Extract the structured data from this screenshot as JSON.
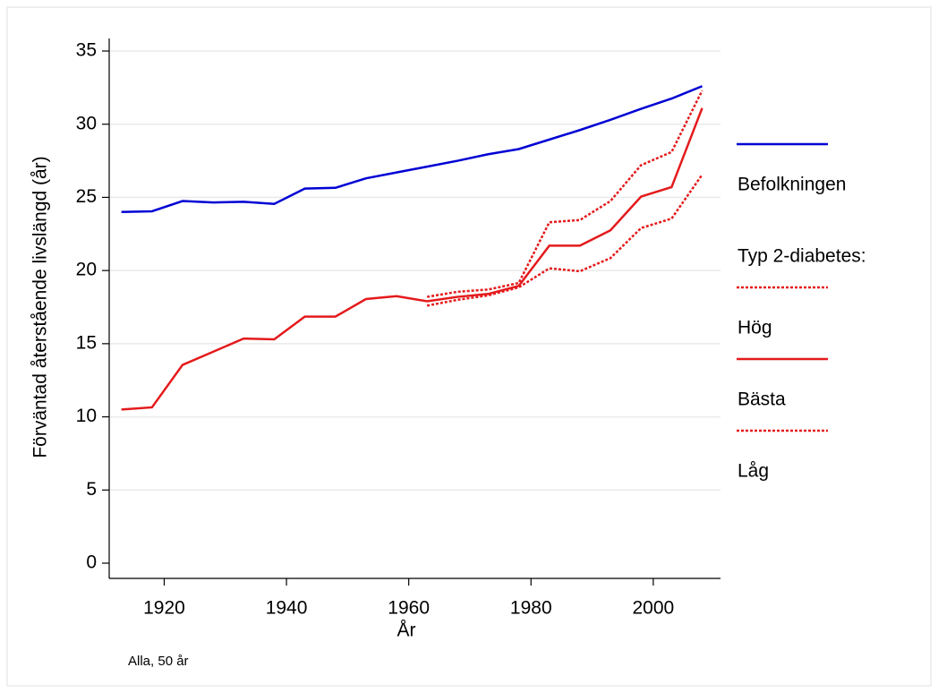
{
  "chart_data": {
    "type": "line",
    "xlabel": "År",
    "ylabel": "Förväntad återstående livslängd (år)",
    "note": "Alla, 50 år",
    "legend_title": "Typ 2-diabetes:",
    "legend_position": "right",
    "grid": true,
    "x": [
      1913,
      1918,
      1923,
      1928,
      1933,
      1938,
      1943,
      1948,
      1953,
      1958,
      1963,
      1968,
      1973,
      1978,
      1983,
      1988,
      1993,
      1998,
      2003,
      2008
    ],
    "xlim": [
      1911,
      2011
    ],
    "xticks": [
      1920,
      1940,
      1960,
      1980,
      2000
    ],
    "ylim": [
      0,
      35
    ],
    "yticks": [
      0,
      5,
      10,
      15,
      20,
      25,
      30,
      35
    ],
    "series": [
      {
        "name": "Befolkningen",
        "color": "#0000d4",
        "linestyle": "solid",
        "values": [
          24.0,
          24.05,
          24.75,
          24.65,
          24.7,
          24.55,
          25.6,
          25.65,
          26.3,
          26.7,
          27.1,
          27.5,
          27.95,
          28.3,
          28.95,
          29.6,
          30.3,
          31.05,
          31.75,
          32.6
        ]
      },
      {
        "name": "Hög",
        "color": "#e41a1c",
        "linestyle": "dotted",
        "values": [
          null,
          null,
          null,
          null,
          null,
          null,
          null,
          null,
          null,
          null,
          18.2,
          18.55,
          18.7,
          19.15,
          23.3,
          23.45,
          24.75,
          27.2,
          28.1,
          32.3
        ]
      },
      {
        "name": "Bästa",
        "color": "#e41a1c",
        "linestyle": "solid",
        "values": [
          10.5,
          10.65,
          13.55,
          14.45,
          15.35,
          15.3,
          16.85,
          16.85,
          18.05,
          18.25,
          17.9,
          18.2,
          18.4,
          18.95,
          21.7,
          21.7,
          22.75,
          25.05,
          25.7,
          31.1
        ]
      },
      {
        "name": "Låg",
        "color": "#e41a1c",
        "linestyle": "dotted",
        "values": [
          null,
          null,
          null,
          null,
          null,
          null,
          null,
          null,
          null,
          null,
          17.6,
          18.0,
          18.3,
          18.85,
          20.15,
          19.95,
          20.85,
          22.9,
          23.55,
          26.55
        ]
      }
    ]
  }
}
